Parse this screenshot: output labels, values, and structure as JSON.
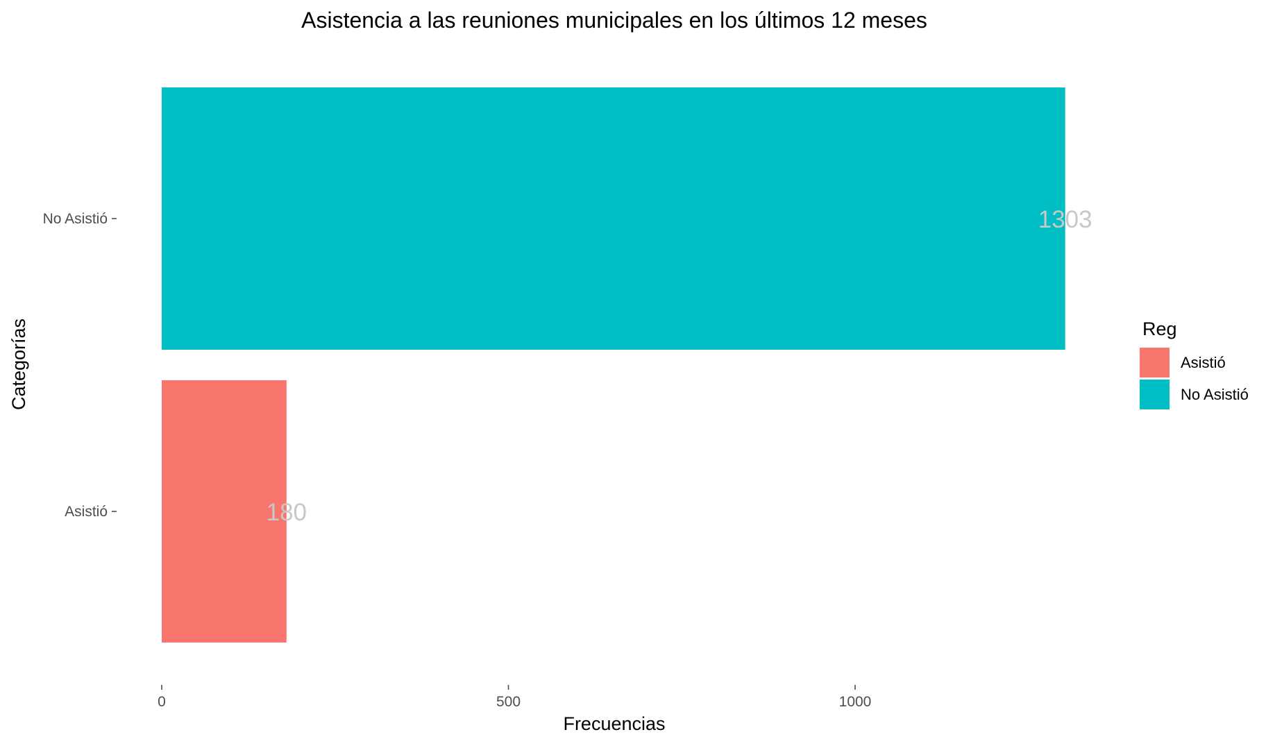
{
  "chart_data": {
    "type": "bar",
    "orientation": "horizontal",
    "title": "Asistencia a las reuniones municipales en los últimos 12 meses",
    "xlabel": "Frecuencias",
    "ylabel": "Categorías",
    "categories": [
      "Asistió",
      "No Asistió"
    ],
    "values": [
      180,
      1303
    ],
    "colors": [
      "#F8766D",
      "#00BFC4"
    ],
    "data_labels": [
      "180",
      "1303"
    ],
    "xlim": [
      0,
      1400
    ],
    "xticks": [
      0,
      500,
      1000
    ],
    "xtick_labels": [
      "0",
      "500",
      "1000"
    ],
    "grid": false,
    "legend": {
      "title": "Reg",
      "position": "right",
      "items": [
        {
          "label": "Asistió",
          "color": "#F8766D"
        },
        {
          "label": "No Asistió",
          "color": "#00BFC4"
        }
      ]
    }
  }
}
